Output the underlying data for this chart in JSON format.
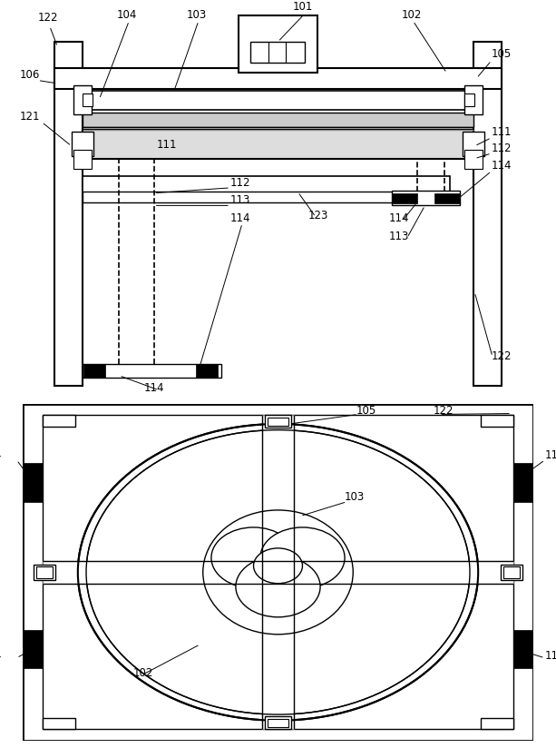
{
  "bg_color": "#ffffff",
  "fig_width": 6.13,
  "fig_height": 8.24
}
